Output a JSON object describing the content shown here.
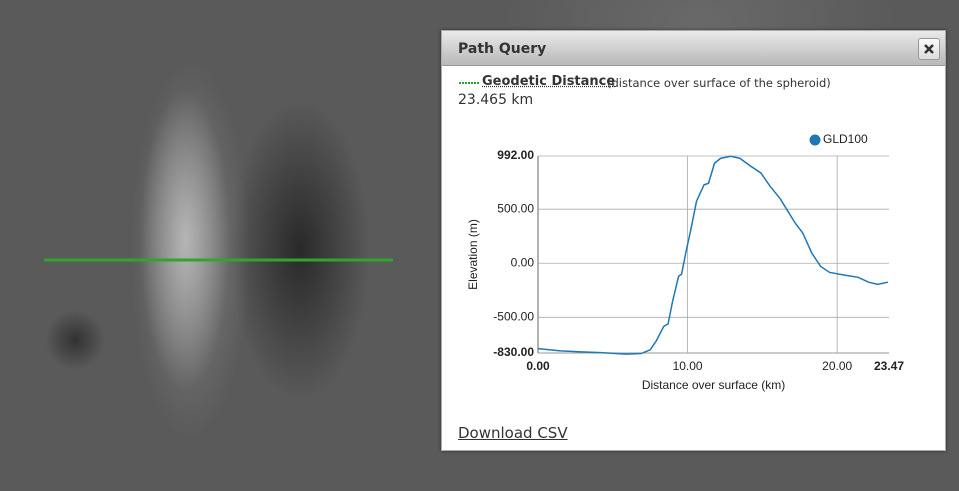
{
  "panel": {
    "title": "Path Query",
    "measure_label": "Geodetic Distance",
    "measure_note": "(distance over surface of the spheroid)",
    "measure_value": "23.465 km",
    "download": "Download CSV"
  },
  "chart_data": {
    "type": "line",
    "x_label": "Distance over surface (km)",
    "y_label": "Elevation (m)",
    "x": [
      0,
      1.5,
      2.9,
      4.2,
      5.9,
      6.9,
      7.5,
      7.9,
      8.4,
      8.7,
      9.0,
      9.4,
      9.6,
      9.9,
      10.2,
      10.6,
      11.1,
      11.4,
      11.8,
      12.2,
      12.9,
      13.5,
      14.2,
      14.9,
      15.5,
      16.2,
      17.2,
      17.7,
      18.3,
      18.9,
      19.5,
      20.5,
      21.4,
      22.1,
      22.7,
      23.4
    ],
    "series": [
      {
        "name": "GLD100",
        "color": "#1f77b4",
        "values": [
          -790,
          -810,
          -820,
          -826,
          -840,
          -835,
          -800,
          -720,
          -585,
          -560,
          -350,
          -120,
          -100,
          110,
          300,
          575,
          725,
          740,
          925,
          970,
          990,
          970,
          900,
          835,
          715,
          595,
          370,
          280,
          95,
          -30,
          -85,
          -110,
          -130,
          -175,
          -195,
          -175
        ]
      }
    ],
    "xlim": [
      0,
      23.465
    ],
    "ylim": [
      -830,
      992
    ],
    "xticks": [
      {
        "value": 0,
        "label": "0.00"
      },
      {
        "value": 10,
        "label": "10.00"
      },
      {
        "value": 20,
        "label": "20.00"
      },
      {
        "value": 23.465,
        "label": "23.47"
      }
    ],
    "yticks": [
      {
        "value": -830,
        "label": "-830.00"
      },
      {
        "value": -500,
        "label": "-500.00"
      },
      {
        "value": 0,
        "label": "0.00"
      },
      {
        "value": 500,
        "label": "500.00"
      },
      {
        "value": 992,
        "label": "992.00"
      }
    ],
    "grid": true,
    "legend": "top-right"
  }
}
